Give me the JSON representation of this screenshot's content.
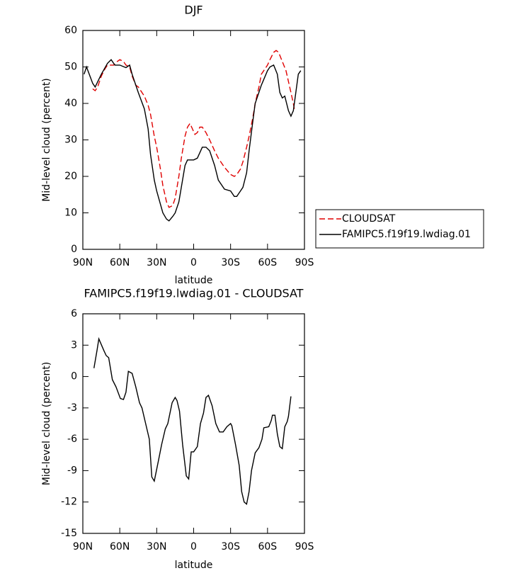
{
  "chart_data": [
    {
      "type": "line",
      "title": "DJF",
      "xlabel": "latitude",
      "ylabel": "Mid-level cloud (percent)",
      "xlim": [
        90,
        -90
      ],
      "xticks": [
        {
          "value": 90,
          "label": "90N"
        },
        {
          "value": 60,
          "label": "60N"
        },
        {
          "value": 30,
          "label": "30N"
        },
        0,
        {
          "value": -30,
          "label": "30S"
        },
        {
          "value": -60,
          "label": "60S"
        },
        {
          "value": -90,
          "label": "90S"
        }
      ],
      "ylim": [
        0,
        60
      ],
      "yticks": [
        0,
        10,
        20,
        30,
        40,
        50,
        60
      ],
      "series": [
        {
          "name": "CLOUDSAT",
          "color": "#e00000",
          "dash": true,
          "x": [
            82,
            80,
            78,
            75,
            72,
            70,
            65,
            62,
            60,
            57,
            55,
            52,
            50,
            47,
            45,
            40,
            37,
            35,
            32,
            30,
            27,
            25,
            22,
            20,
            17,
            15,
            12,
            10,
            7,
            5,
            3,
            1,
            -1,
            -3,
            -5,
            -7,
            -10,
            -13,
            -17,
            -20,
            -25,
            -30,
            -33,
            -35,
            -38,
            -40,
            -43,
            -45,
            -48,
            -50,
            -53,
            -55,
            -60,
            -62,
            -65,
            -67,
            -69,
            -72,
            -75,
            -77,
            -79,
            -81,
            -82
          ],
          "values": [
            44,
            43.5,
            44.5,
            47.5,
            49.5,
            50.5,
            50.5,
            51.5,
            52,
            51.5,
            50.5,
            50,
            47.5,
            45,
            44.5,
            42,
            39.5,
            37,
            31,
            28,
            22,
            17.5,
            13,
            11.5,
            12,
            14,
            20,
            25,
            31,
            33.5,
            34.5,
            33,
            31.5,
            32,
            33.5,
            33.5,
            32,
            30,
            27,
            25,
            22.5,
            20.5,
            20,
            20.5,
            22,
            24,
            28,
            31,
            36,
            40,
            44.5,
            48,
            50.5,
            52,
            54,
            54.5,
            54,
            51.5,
            49,
            46,
            43,
            40,
            38
          ]
        },
        {
          "name": "FAMIPC5.f19f19.lwdiag.01",
          "color": "#000000",
          "dash": false,
          "x": [
            89,
            87,
            82,
            80,
            75,
            70,
            67,
            64,
            60,
            55,
            52,
            50,
            45,
            40,
            37,
            35,
            32,
            30,
            25,
            22,
            20,
            17,
            15,
            12,
            10,
            7,
            5,
            0,
            -3,
            -7,
            -10,
            -13,
            -17,
            -20,
            -25,
            -30,
            -33,
            -35,
            -38,
            -40,
            -43,
            -45,
            -48,
            -50,
            -55,
            -60,
            -62,
            -65,
            -68,
            -70,
            -72,
            -74,
            -77,
            -79,
            -81,
            -83,
            -85,
            -87
          ],
          "values": [
            48,
            50,
            45.5,
            44.5,
            48,
            51,
            52,
            50.5,
            50.5,
            49.8,
            50.5,
            48,
            43,
            38.5,
            33,
            26,
            19,
            16,
            10,
            8.3,
            7.8,
            9,
            10,
            13,
            17,
            23,
            24.5,
            24.5,
            25,
            28,
            28,
            27,
            23,
            19,
            16.5,
            16,
            14.5,
            14.5,
            16,
            17,
            21,
            27,
            35,
            40,
            45,
            49,
            50,
            50.5,
            48,
            43,
            41.5,
            42,
            38,
            36.5,
            38,
            43,
            48,
            49
          ]
        }
      ]
    },
    {
      "type": "line",
      "title": "FAMIPC5.f19f19.lwdiag.01 - CLOUDSAT",
      "xlabel": "latitude",
      "ylabel": "Mid-level cloud (percent)",
      "xlim": [
        90,
        -90
      ],
      "xticks": [
        {
          "value": 90,
          "label": "90N"
        },
        {
          "value": 60,
          "label": "60N"
        },
        {
          "value": 30,
          "label": "30N"
        },
        0,
        {
          "value": -30,
          "label": "30S"
        },
        {
          "value": -60,
          "label": "60S"
        },
        {
          "value": -90,
          "label": "90S"
        }
      ],
      "ylim": [
        -15,
        6
      ],
      "yticks": [
        -15,
        -12,
        -9,
        -6,
        -3,
        0,
        3,
        6
      ],
      "series": [
        {
          "color": "#000000",
          "dash": false,
          "x": [
            81,
            78.5,
            77,
            73,
            71,
            69,
            66,
            63,
            59.5,
            57,
            55,
            53,
            50,
            47,
            44,
            42,
            39,
            36,
            34,
            32,
            28.5,
            26,
            23,
            21,
            17.5,
            15,
            13.5,
            11.5,
            9,
            6,
            4,
            2,
            0,
            -3,
            -5.5,
            -8,
            -10,
            -12,
            -15,
            -18,
            -21,
            -24,
            -27,
            -30,
            -31,
            -34,
            -37,
            -39,
            -41,
            -43,
            -45,
            -47,
            -50,
            -53,
            -55.5,
            -57,
            -61,
            -63,
            -64,
            -66,
            -68,
            -70,
            -72,
            -74,
            -76,
            -77,
            -79
          ],
          "values": [
            0.8,
            2.5,
            3.6,
            2.5,
            2,
            1.8,
            -0.3,
            -1,
            -2.1,
            -2.2,
            -1.5,
            0.5,
            0.3,
            -1,
            -2.5,
            -3,
            -4.5,
            -6,
            -9.6,
            -10,
            -8,
            -6.5,
            -5,
            -4.5,
            -2.5,
            -2,
            -2.3,
            -3.3,
            -6.5,
            -9.5,
            -9.8,
            -7.2,
            -7.2,
            -6.7,
            -4.5,
            -3.5,
            -2,
            -1.8,
            -2.8,
            -4.5,
            -5.3,
            -5.3,
            -4.8,
            -4.5,
            -4.7,
            -6.5,
            -8.5,
            -11,
            -12,
            -12.2,
            -11,
            -9,
            -7.3,
            -6.8,
            -6,
            -4.9,
            -4.8,
            -4.2,
            -3.7,
            -3.7,
            -5.5,
            -6.7,
            -6.9,
            -4.8,
            -4.3,
            -3.8,
            -1.9
          ]
        }
      ]
    }
  ]
}
